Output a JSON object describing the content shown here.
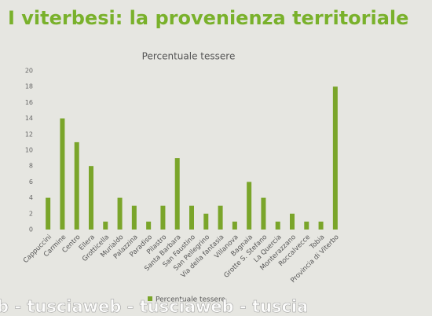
{
  "chart_data": {
    "type": "bar",
    "slide_title": "I viterbesi: la provenienza territoriale",
    "title": "Percentuale tessere",
    "categories": [
      "Cappuccini",
      "Carmine",
      "Centro",
      "Ellera",
      "Grotticella",
      "Murialdo",
      "Palazzina",
      "Paradiso",
      "Pilastro",
      "Santa Barbara",
      "San Faustino",
      "San Pellegrino",
      "Via della fantasia",
      "Villanova",
      "Bagnaia",
      "Grotte S. Stefano",
      "La Quercia",
      "Monterazzano",
      "Roccalvecce",
      "Tobia",
      "Provincia di Viterbo"
    ],
    "series": [
      {
        "name": "Percentuale tessere",
        "color": "#7aa52a",
        "values": [
          4,
          14,
          11,
          8,
          1,
          4,
          3,
          1,
          3,
          9,
          3,
          2,
          3,
          1,
          6,
          4,
          1,
          2,
          1,
          1,
          18
        ]
      }
    ],
    "ylim": [
      0,
      20
    ],
    "yticks": [
      0,
      2,
      4,
      6,
      8,
      10,
      12,
      14,
      16,
      18,
      20
    ],
    "grid": false,
    "legend": "bottom",
    "watermark": "b - tusciaweb - tusciaweb - tuscia"
  }
}
